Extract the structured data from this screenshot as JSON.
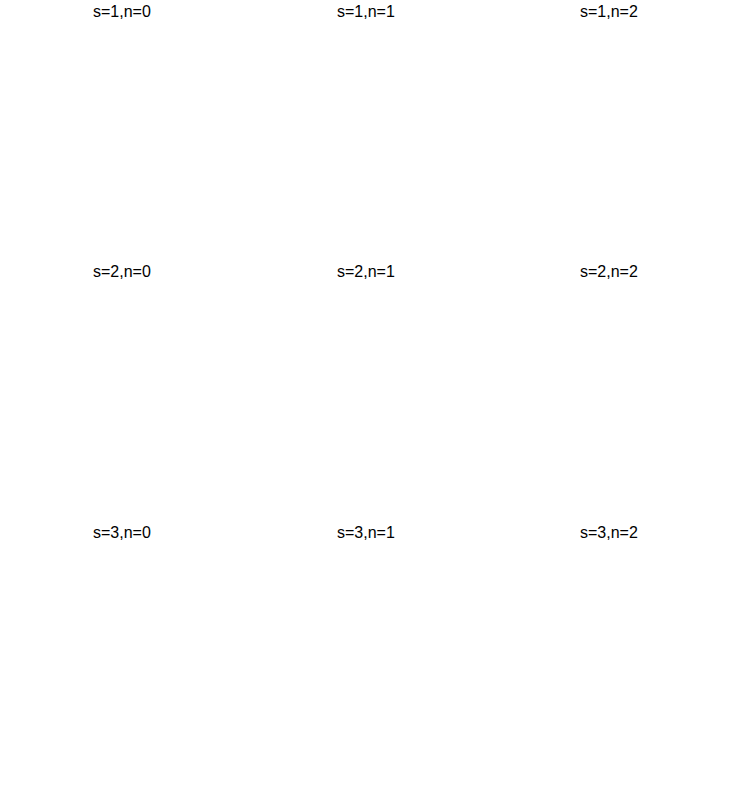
{
  "chart_data": [
    {
      "type": "surface",
      "title": "s=1,n=0",
      "s": 1,
      "n": 0,
      "tick_labels": false
    },
    {
      "type": "surface",
      "title": "s=1,n=1",
      "s": 1,
      "n": 1,
      "tick_labels": false
    },
    {
      "type": "surface",
      "title": "s=1,n=2",
      "s": 1,
      "n": 2,
      "tick_labels": false
    },
    {
      "type": "surface",
      "title": "s=2,n=0",
      "s": 2,
      "n": 0,
      "tick_labels": false
    },
    {
      "type": "surface",
      "title": "s=2,n=1",
      "s": 2,
      "n": 1,
      "tick_labels": false
    },
    {
      "type": "surface",
      "title": "s=2,n=2",
      "s": 2,
      "n": 2,
      "tick_labels": false
    },
    {
      "type": "surface",
      "title": "s=3,n=0",
      "s": 3,
      "n": 0,
      "tick_labels": false
    },
    {
      "type": "surface",
      "title": "s=3,n=1",
      "s": 3,
      "n": 1,
      "tick_labels": false
    },
    {
      "type": "surface",
      "title": "s=3,n=2",
      "s": 3,
      "n": 2,
      "tick_labels": false
    }
  ]
}
